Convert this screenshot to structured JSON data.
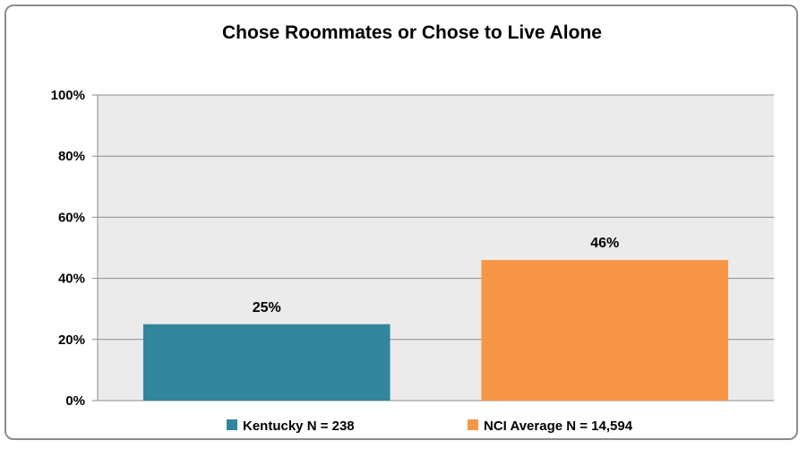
{
  "chart_data": {
    "type": "bar",
    "title": "Chose Roommates or Chose to Live Alone",
    "xlabel": "",
    "ylabel": "",
    "ylim": [
      0,
      100
    ],
    "yticks": [
      "0%",
      "20%",
      "40%",
      "60%",
      "80%",
      "100%"
    ],
    "ytick_values": [
      0,
      20,
      40,
      60,
      80,
      100
    ],
    "grid": true,
    "legend_position": "bottom",
    "series": [
      {
        "name": "Kentucky N = 238",
        "value": 25,
        "label": "25%",
        "color": "#31859c"
      },
      {
        "name": "NCI Average N = 14,594",
        "value": 46,
        "label": "46%",
        "color": "#f79646"
      }
    ],
    "plot_background": "#ebebeb"
  }
}
